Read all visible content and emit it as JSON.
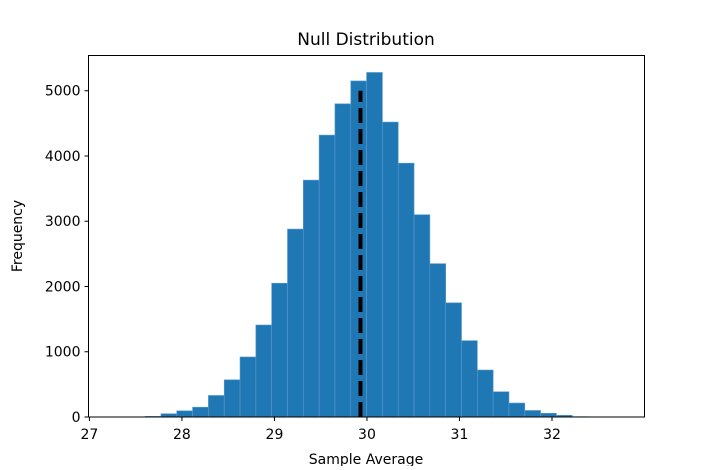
{
  "chart_data": {
    "type": "bar",
    "title": "Null Distribution",
    "xlabel": "Sample Average",
    "ylabel": "Frequency",
    "bin_start": 27.26,
    "bin_width": 0.171,
    "values": [
      0,
      2,
      10,
      50,
      95,
      150,
      330,
      570,
      920,
      1410,
      2050,
      2880,
      3630,
      4320,
      4800,
      5150,
      5280,
      4520,
      3890,
      3100,
      2350,
      1750,
      1170,
      720,
      387,
      214,
      100,
      57,
      26,
      5,
      1,
      1
    ],
    "xlim": [
      26.99,
      33.0
    ],
    "ylim": [
      0,
      5540
    ],
    "xticks": [
      27,
      28,
      29,
      30,
      31,
      32
    ],
    "yticks": [
      0,
      1000,
      2000,
      3000,
      4000,
      5000
    ],
    "vline": {
      "x": 29.93,
      "style": "dashed",
      "color": "#000000"
    },
    "bar_color": "#1f77b4",
    "grid": false
  }
}
